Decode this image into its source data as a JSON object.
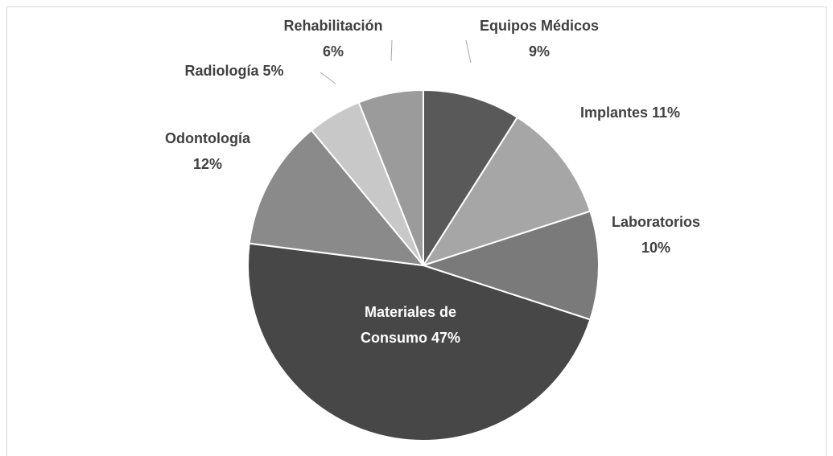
{
  "chart_data": {
    "type": "pie",
    "categories": [
      "Equipos Médicos",
      "Implantes",
      "Laboratorios",
      "Materiales de Consumo",
      "Odontología",
      "Radiología",
      "Rehabilitación"
    ],
    "values": [
      9,
      11,
      10,
      47,
      12,
      5,
      6
    ],
    "value_labels": [
      "9%",
      "11%",
      "10%",
      "47%",
      "12%",
      "5%",
      "6%"
    ],
    "colors": [
      "#595959",
      "#a6a6a6",
      "#7a7a7a",
      "#474747",
      "#8a8a8a",
      "#c8c8c8",
      "#9b9b9b"
    ]
  }
}
